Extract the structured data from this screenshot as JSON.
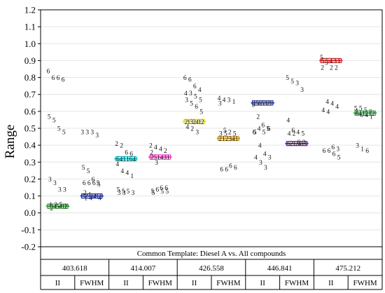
{
  "chart_data": {
    "type": "scatter",
    "ylabel": "Range",
    "ylim": [
      -0.2,
      1.2
    ],
    "yticks": [
      "-0.2",
      "-0.1",
      "0.0",
      "0.1",
      "0.2",
      "0.3",
      "0.4",
      "0.5",
      "0.6",
      "0.7",
      "0.8",
      "0.9",
      "1.0",
      "1.1",
      "1.2"
    ],
    "footer_title": "Common Template: Diesel A vs. All compounds",
    "groups": [
      {
        "label": "403.618",
        "subgroups": [
          {
            "label": "II",
            "color": "#2ea02e",
            "mean": 0.04,
            "mean_labels": [
              "3",
              "1",
              "4",
              "5",
              "4",
              "1",
              "2"
            ],
            "points": [
              [
                "6",
                0.84
              ],
              [
                "6",
                0.8
              ],
              [
                "6",
                0.8
              ],
              [
                "6",
                0.79
              ],
              [
                "5",
                0.57
              ],
              [
                "5",
                0.55
              ],
              [
                "5",
                0.5
              ],
              [
                "5",
                0.48
              ],
              [
                "3",
                0.2
              ],
              [
                "3",
                0.18
              ],
              [
                "3",
                0.14
              ],
              [
                "3",
                0.14
              ],
              [
                "1",
                0.05
              ],
              [
                "2",
                0.05
              ],
              [
                "5",
                0.05
              ],
              [
                "1",
                0.04
              ],
              [
                "2",
                0.03
              ]
            ]
          },
          {
            "label": "FWHM",
            "color": "#2233cc",
            "mean": 0.1,
            "mean_labels": [
              "5",
              "2",
              "3",
              "1",
              "4",
              "1",
              "2"
            ],
            "points": [
              [
                "3",
                0.48
              ],
              [
                "3",
                0.48
              ],
              [
                "3",
                0.48
              ],
              [
                "3",
                0.46
              ],
              [
                "5",
                0.27
              ],
              [
                "5",
                0.25
              ],
              [
                "6",
                0.2
              ],
              [
                "5",
                0.18
              ],
              [
                "6",
                0.18
              ],
              [
                "6",
                0.18
              ],
              [
                "6",
                0.18
              ],
              [
                "5",
                0.17
              ],
              [
                "2",
                0.12
              ],
              [
                "1",
                0.11
              ],
              [
                "2",
                0.1
              ],
              [
                "4",
                0.09
              ],
              [
                "1",
                0.09
              ],
              [
                "4",
                0.09
              ]
            ]
          }
        ]
      },
      {
        "label": "414.007",
        "subgroups": [
          {
            "label": "II",
            "color": "#00c0c8",
            "mean": 0.32,
            "mean_labels": [
              "6",
              "4",
              "1",
              "1",
              "6",
              "4"
            ],
            "points": [
              [
                "2",
                0.41
              ],
              [
                "2",
                0.4
              ],
              [
                "6",
                0.36
              ],
              [
                "6",
                0.35
              ],
              [
                "4",
                0.29
              ],
              [
                "4",
                0.25
              ],
              [
                "4",
                0.24
              ],
              [
                "1",
                0.22
              ],
              [
                "5",
                0.14
              ],
              [
                "5",
                0.13
              ],
              [
                "5",
                0.13
              ],
              [
                "3",
                0.12
              ],
              [
                "3",
                0.12
              ],
              [
                "3",
                0.12
              ]
            ]
          },
          {
            "label": "FWHM",
            "color": "#ff33cc",
            "mean": 0.33,
            "mean_labels": [
              "2",
              "5",
              "1",
              "4",
              "3",
              "1"
            ],
            "points": [
              [
                "2",
                0.4
              ],
              [
                "4",
                0.39
              ],
              [
                "4",
                0.38
              ],
              [
                "2",
                0.37
              ],
              [
                "2",
                0.36
              ],
              [
                "3",
                0.3
              ],
              [
                "6",
                0.15
              ],
              [
                "6",
                0.15
              ],
              [
                "5",
                0.13
              ],
              [
                "6",
                0.14
              ],
              [
                "5",
                0.13
              ],
              [
                "5",
                0.13
              ],
              [
                "5",
                0.12
              ]
            ]
          }
        ]
      },
      {
        "label": "426.558",
        "subgroups": [
          {
            "label": "II",
            "color": "#e8e000",
            "mean": 0.54,
            "mean_labels": [
              "2",
              "1",
              "3",
              "2",
              "4",
              "1",
              "2"
            ],
            "points": [
              [
                "6",
                0.8
              ],
              [
                "6",
                0.79
              ],
              [
                "6",
                0.75
              ],
              [
                "4",
                0.73
              ],
              [
                "4",
                0.71
              ],
              [
                "3",
                0.71
              ],
              [
                "5",
                0.69
              ],
              [
                "5",
                0.67
              ],
              [
                "3",
                0.67
              ],
              [
                "5",
                0.65
              ],
              [
                "6",
                0.63
              ],
              [
                "5",
                0.6
              ],
              [
                "4",
                0.51
              ],
              [
                "2",
                0.5
              ],
              [
                "3",
                0.48
              ]
            ]
          },
          {
            "label": "FWHM",
            "color": "#c89622",
            "mean": 0.44,
            "mean_labels": [
              "2",
              "1",
              "2",
              "3",
              "4",
              "1"
            ],
            "points": [
              [
                "4",
                0.68
              ],
              [
                "4",
                0.67
              ],
              [
                "3",
                0.67
              ],
              [
                "1",
                0.66
              ],
              [
                "3",
                0.65
              ],
              [
                "5",
                0.49
              ],
              [
                "2",
                0.48
              ],
              [
                "5",
                0.47
              ],
              [
                "3",
                0.47
              ],
              [
                "5",
                0.47
              ],
              [
                "6",
                0.28
              ],
              [
                "6",
                0.27
              ],
              [
                "6",
                0.26
              ],
              [
                "6",
                0.26
              ]
            ]
          }
        ]
      },
      {
        "label": "446.841",
        "subgroups": [
          {
            "label": "II",
            "color": "#223399",
            "mean": 0.65,
            "mean_labels": [
              "1",
              "5",
              "6",
              "5",
              "3",
              "2",
              "1"
            ],
            "points": [
              [
                "5",
                0.64
              ],
              [
                "2",
                0.57
              ],
              [
                "6",
                0.52
              ],
              [
                "5",
                0.5
              ],
              [
                "6",
                0.48
              ],
              [
                "4",
                0.5
              ],
              [
                "5",
                0.48
              ],
              [
                "6",
                0.5
              ],
              [
                "5",
                0.48
              ],
              [
                "4",
                0.4
              ],
              [
                "4",
                0.35
              ],
              [
                "3",
                0.33
              ],
              [
                "4",
                0.33
              ],
              [
                "3",
                0.3
              ],
              [
                "3",
                0.27
              ]
            ]
          },
          {
            "label": "FWHM",
            "color": "#6a2a8a",
            "mean": 0.41,
            "mean_labels": [
              "6",
              "2",
              "1",
              "2",
              "4",
              "1",
              "3"
            ],
            "points": [
              [
                "5",
                0.8
              ],
              [
                "5",
                0.78
              ],
              [
                "3",
                0.77
              ],
              [
                "3",
                0.73
              ],
              [
                "4",
                0.55
              ],
              [
                "6",
                0.49
              ],
              [
                "4",
                0.48
              ],
              [
                "5",
                0.47
              ],
              [
                "4",
                0.47
              ],
              [
                "2",
                0.47
              ],
              [
                "6",
                0.42
              ],
              [
                "2",
                0.42
              ]
            ]
          }
        ]
      },
      {
        "label": "475.212",
        "subgroups": [
          {
            "label": "II",
            "color": "#dd2222",
            "mean": 0.9,
            "mean_labels": [
              "5",
              "5",
              "4",
              "3",
              "1"
            ],
            "points": [
              [
                "5",
                0.92
              ],
              [
                "5",
                0.89
              ],
              [
                "2",
                0.86
              ],
              [
                "2",
                0.86
              ],
              [
                "2",
                0.86
              ],
              [
                "4",
                0.66
              ],
              [
                "4",
                0.65
              ],
              [
                "4",
                0.63
              ],
              [
                "4",
                0.61
              ],
              [
                "4",
                0.6
              ],
              [
                "6",
                0.39
              ],
              [
                "3",
                0.38
              ],
              [
                "6",
                0.37
              ],
              [
                "6",
                0.37
              ],
              [
                "6",
                0.35
              ],
              [
                "5",
                0.33
              ]
            ]
          },
          {
            "label": "FWHM",
            "color": "#33aa44",
            "mean": 0.59,
            "mean_labels": [
              "6",
              "4",
              "1",
              "2",
              "1",
              "2"
            ],
            "points": [
              [
                "5",
                0.62
              ],
              [
                "5",
                0.62
              ],
              [
                "5",
                0.61
              ],
              [
                "3",
                0.6
              ],
              [
                "3",
                0.6
              ],
              [
                "6",
                0.58
              ],
              [
                "4",
                0.58
              ],
              [
                "1",
                0.57
              ],
              [
                "3",
                0.4
              ],
              [
                "1",
                0.38
              ],
              [
                "6",
                0.37
              ]
            ]
          }
        ]
      }
    ]
  }
}
